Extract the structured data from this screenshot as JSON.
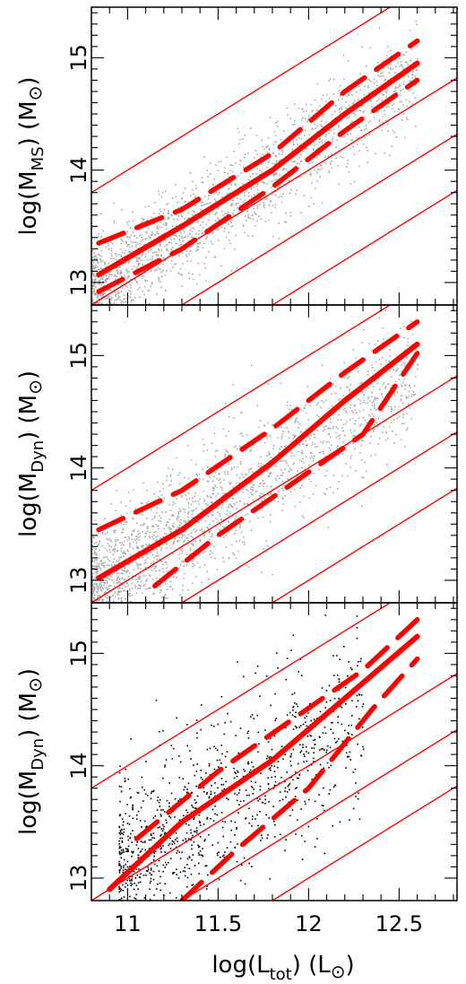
{
  "chart_data": [
    {
      "type": "scatter",
      "panel": "top",
      "ylabel_main": "log(M",
      "ylabel_sub": "MS",
      "ylabel_unit": ")  (M",
      "ylabel_sun": "⊙",
      "ylabel_end": ")",
      "xlim": [
        10.8,
        12.82
      ],
      "ylim": [
        12.8,
        15.45
      ],
      "yticks": [
        "13",
        "14",
        "15"
      ],
      "points_color": "#aaaaaa",
      "line_color": "#ff0000",
      "cloud": {
        "x_range": [
          10.8,
          12.6
        ],
        "slope": 1.1,
        "scatter": 0.22,
        "count": 1800
      },
      "reference_lines": {
        "slope": 1.0,
        "intercepts": [
          3.0,
          2.0,
          1.5,
          1.0
        ]
      },
      "median_curve": [
        [
          10.84,
          13.07
        ],
        [
          11.3,
          13.5
        ],
        [
          11.8,
          14.0
        ],
        [
          12.2,
          14.5
        ],
        [
          12.6,
          14.95
        ]
      ],
      "dashed_upper": [
        [
          10.84,
          13.35
        ],
        [
          11.3,
          13.65
        ],
        [
          11.8,
          14.15
        ],
        [
          12.2,
          14.7
        ],
        [
          12.6,
          15.15
        ]
      ],
      "dashed_lower": [
        [
          10.84,
          12.92
        ],
        [
          11.3,
          13.3
        ],
        [
          11.8,
          13.85
        ],
        [
          12.2,
          14.35
        ],
        [
          12.6,
          14.8
        ]
      ]
    },
    {
      "type": "scatter",
      "panel": "middle",
      "ylabel_main": "log(M",
      "ylabel_sub": "Dyn",
      "ylabel_unit": ")  (M",
      "ylabel_sun": "⊙",
      "ylabel_end": ")",
      "xlim": [
        10.8,
        12.82
      ],
      "ylim": [
        12.8,
        15.45
      ],
      "yticks": [
        "13",
        "14",
        "15"
      ],
      "points_color": "#aaaaaa",
      "line_color": "#ff0000",
      "cloud": {
        "x_range": [
          10.8,
          12.6
        ],
        "slope": 1.1,
        "scatter": 0.28,
        "count": 2000
      },
      "reference_lines": {
        "slope": 1.0,
        "intercepts": [
          3.0,
          2.0,
          1.5,
          1.0
        ]
      },
      "median_curve": [
        [
          10.84,
          13.02
        ],
        [
          11.3,
          13.45
        ],
        [
          11.8,
          14.05
        ],
        [
          12.2,
          14.6
        ],
        [
          12.6,
          15.1
        ]
      ],
      "dashed_upper": [
        [
          10.84,
          13.45
        ],
        [
          11.3,
          13.8
        ],
        [
          11.8,
          14.35
        ],
        [
          12.2,
          14.85
        ],
        [
          12.6,
          15.3
        ]
      ],
      "dashed_lower": [
        [
          11.15,
          12.95
        ],
        [
          11.5,
          13.4
        ],
        [
          11.9,
          13.85
        ],
        [
          12.3,
          14.3
        ],
        [
          12.6,
          15.02
        ]
      ]
    },
    {
      "type": "scatter",
      "panel": "bottom",
      "ylabel_main": "log(M",
      "ylabel_sub": "Dyn",
      "ylabel_unit": ")  (M",
      "ylabel_sun": "⊙",
      "ylabel_end": ")",
      "xlim": [
        10.8,
        12.82
      ],
      "ylim": [
        12.8,
        15.45
      ],
      "xticks": [
        "11",
        "11.5",
        "12",
        "12.5"
      ],
      "yticks": [
        "13",
        "14",
        "15"
      ],
      "xlabel_main": "log(L",
      "xlabel_sub": "tot",
      "xlabel_unit": ")  (L",
      "xlabel_sun": "⊙",
      "xlabel_end": ")",
      "points_color": "#000000",
      "line_color": "#ff0000",
      "cloud": {
        "x_range": [
          10.95,
          12.3
        ],
        "slope": 1.05,
        "scatter": 0.4,
        "count": 1100
      },
      "reference_lines": {
        "slope": 1.0,
        "intercepts": [
          3.0,
          2.0,
          1.5,
          1.0
        ]
      },
      "median_curve": [
        [
          10.9,
          12.9
        ],
        [
          11.3,
          13.5
        ],
        [
          11.8,
          14.05
        ],
        [
          12.2,
          14.6
        ],
        [
          12.6,
          15.15
        ]
      ],
      "dashed_upper": [
        [
          11.05,
          13.35
        ],
        [
          11.5,
          13.95
        ],
        [
          11.9,
          14.4
        ],
        [
          12.3,
          14.85
        ],
        [
          12.6,
          15.3
        ]
      ],
      "dashed_lower": [
        [
          11.3,
          12.8
        ],
        [
          11.6,
          13.25
        ],
        [
          12.0,
          13.8
        ],
        [
          12.35,
          14.5
        ],
        [
          12.6,
          14.95
        ]
      ]
    }
  ]
}
